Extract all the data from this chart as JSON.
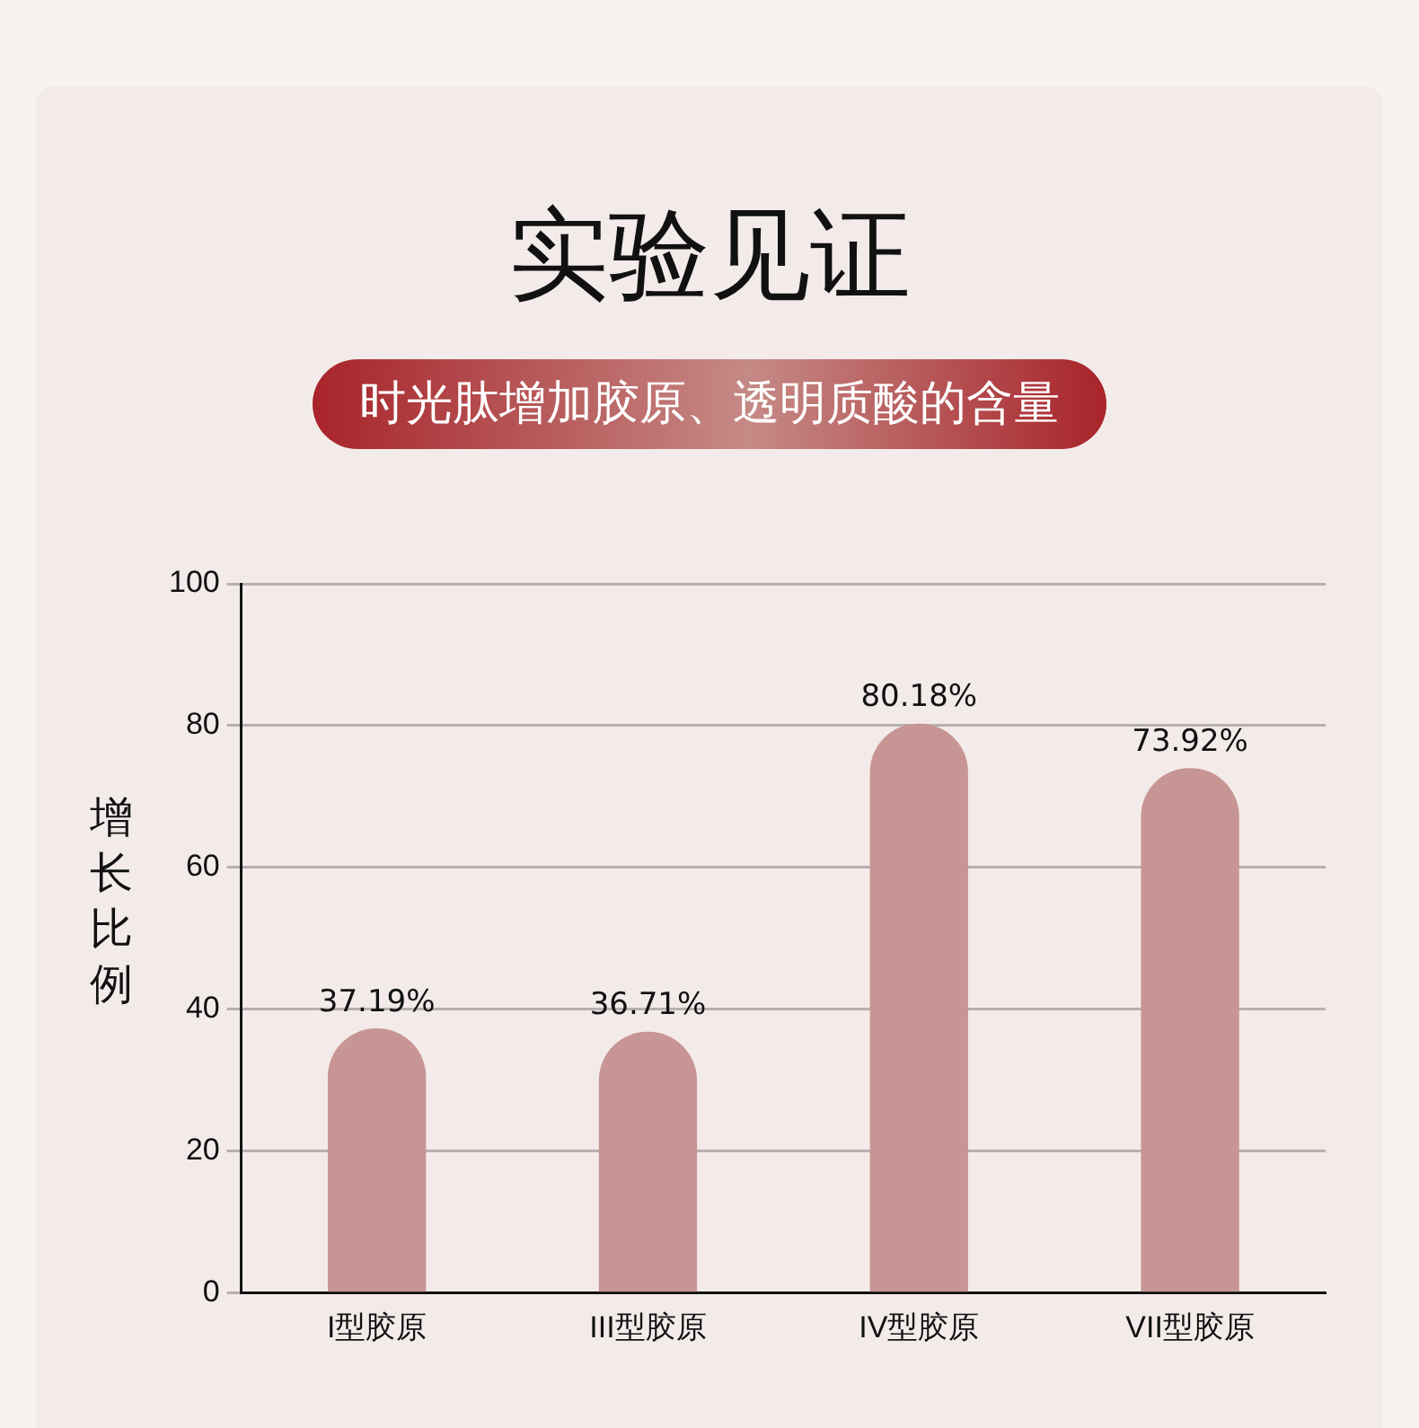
{
  "chart_data": {
    "type": "bar",
    "title": "实验见证",
    "subtitle": "时光肽增加胶原、透明质酸的含量",
    "ylabel": "增长比例",
    "categories": [
      "I型胶原",
      "III型胶原",
      "IV型胶原",
      "VII型胶原"
    ],
    "values": [
      37.19,
      36.71,
      80.18,
      73.92
    ],
    "value_labels": [
      "37.19%",
      "36.71%",
      "80.18%",
      "73.92%"
    ],
    "color": "#c79593",
    "ylim": [
      0,
      100
    ],
    "yticks": [
      0,
      20,
      40,
      60,
      80,
      100
    ],
    "grid": "y",
    "legend": false
  }
}
